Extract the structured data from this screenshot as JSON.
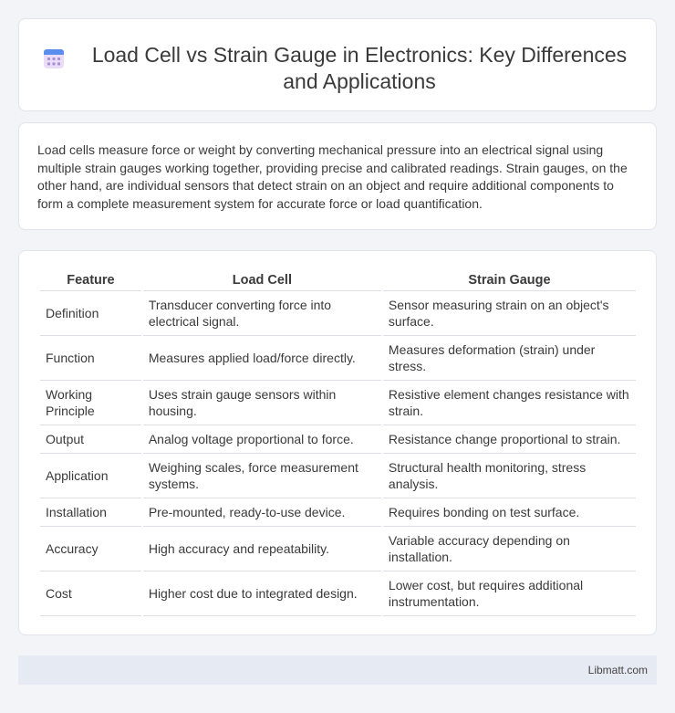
{
  "header": {
    "title": "Load Cell vs Strain Gauge in Electronics: Key Differences and Applications",
    "icon": "calendar-icon"
  },
  "intro": {
    "text": "Load cells measure force or weight by converting mechanical pressure into an electrical signal using multiple strain gauges working together, providing precise and calibrated readings. Strain gauges, on the other hand, are individual sensors that detect strain on an object and require additional components to form a complete measurement system for accurate force or load quantification."
  },
  "table": {
    "headers": [
      "Feature",
      "Load Cell",
      "Strain Gauge"
    ],
    "rows": [
      [
        "Definition",
        "Transducer converting force into electrical signal.",
        "Sensor measuring strain on an object's surface."
      ],
      [
        "Function",
        "Measures applied load/force directly.",
        "Measures deformation (strain) under stress."
      ],
      [
        "Working Principle",
        "Uses strain gauge sensors within housing.",
        "Resistive element changes resistance with strain."
      ],
      [
        "Output",
        "Analog voltage proportional to force.",
        "Resistance change proportional to strain."
      ],
      [
        "Application",
        "Weighing scales, force measurement systems.",
        "Structural health monitoring, stress analysis."
      ],
      [
        "Installation",
        "Pre-mounted, ready-to-use device.",
        "Requires bonding on test surface."
      ],
      [
        "Accuracy",
        "High accuracy and repeatability.",
        "Variable accuracy depending on installation."
      ],
      [
        "Cost",
        "Higher cost due to integrated design.",
        "Lower cost, but requires additional instrumentation."
      ]
    ]
  },
  "footer": {
    "text": "Libmatt.com"
  }
}
